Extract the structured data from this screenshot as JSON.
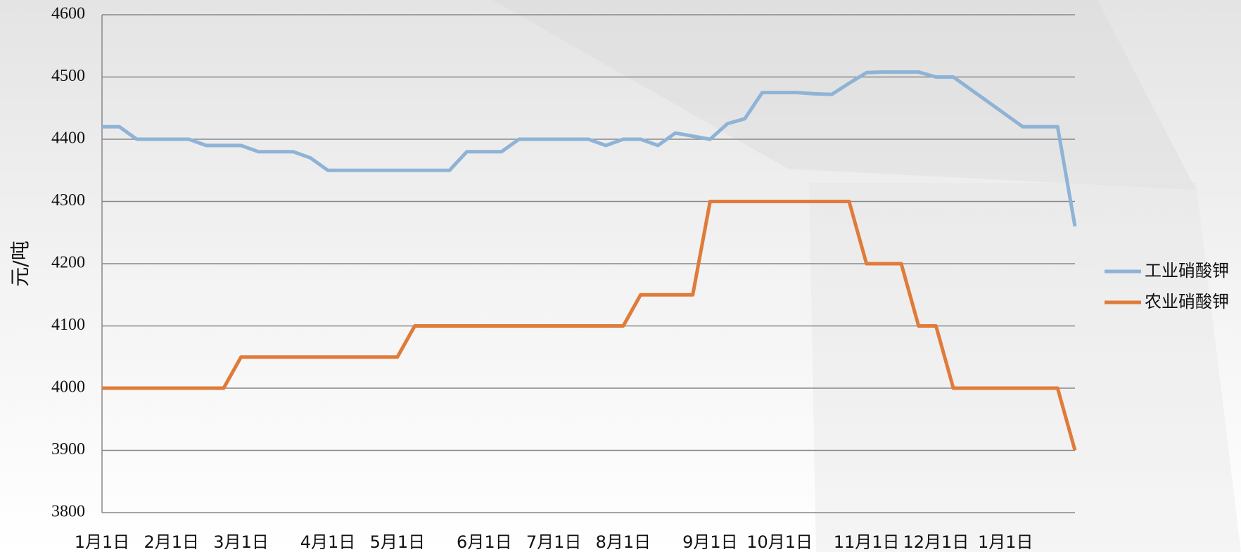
{
  "chart_data": {
    "type": "line",
    "y_label": "元/吨",
    "categories": [
      "1月1日",
      null,
      null,
      null,
      "2月1日",
      null,
      null,
      null,
      "3月1日",
      null,
      null,
      null,
      null,
      "4月1日",
      null,
      null,
      null,
      "5月1日",
      null,
      null,
      null,
      null,
      "6月1日",
      null,
      null,
      null,
      "7月1日",
      null,
      null,
      null,
      "8月1日",
      null,
      null,
      null,
      null,
      "9月1日",
      null,
      null,
      null,
      "10月1日",
      null,
      null,
      null,
      null,
      "11月1日",
      null,
      null,
      null,
      "12月1日",
      null,
      null,
      null,
      "1月1日",
      null,
      null,
      null,
      null
    ],
    "series": [
      {
        "name": "工业硝酸钾",
        "color": "#8fb3d6",
        "values": [
          4420,
          4420,
          4400,
          4400,
          4400,
          4400,
          4390,
          4390,
          4390,
          4380,
          4380,
          4380,
          4370,
          4350,
          4350,
          4350,
          4350,
          4350,
          4350,
          4350,
          4350,
          4380,
          4380,
          4380,
          4400,
          4400,
          4400,
          4400,
          4400,
          4390,
          4400,
          4400,
          4390,
          4410,
          4405,
          4400,
          4425,
          4433,
          4475,
          4475,
          4475,
          4473,
          4472,
          4490,
          4507,
          4508,
          4508,
          4508,
          4500,
          4500,
          4480,
          4460,
          4440,
          4420,
          4420,
          4420,
          4260
        ]
      },
      {
        "name": "农业硝酸钾",
        "color": "#e07b39",
        "values": [
          4000,
          4000,
          4000,
          4000,
          4000,
          4000,
          4000,
          4000,
          4050,
          4050,
          4050,
          4050,
          4050,
          4050,
          4050,
          4050,
          4050,
          4050,
          4100,
          4100,
          4100,
          4100,
          4100,
          4100,
          4100,
          4100,
          4100,
          4100,
          4100,
          4100,
          4100,
          4150,
          4150,
          4150,
          4150,
          4300,
          4300,
          4300,
          4300,
          4300,
          4300,
          4300,
          4300,
          4300,
          4200,
          4200,
          4200,
          4100,
          4100,
          4000,
          4000,
          4000,
          4000,
          4000,
          4000,
          4000,
          3900
        ]
      }
    ],
    "ylim": [
      3800,
      4600
    ],
    "yticks": [
      3800,
      3900,
      4000,
      4100,
      4200,
      4300,
      4400,
      4500,
      4600
    ],
    "grid": true
  }
}
